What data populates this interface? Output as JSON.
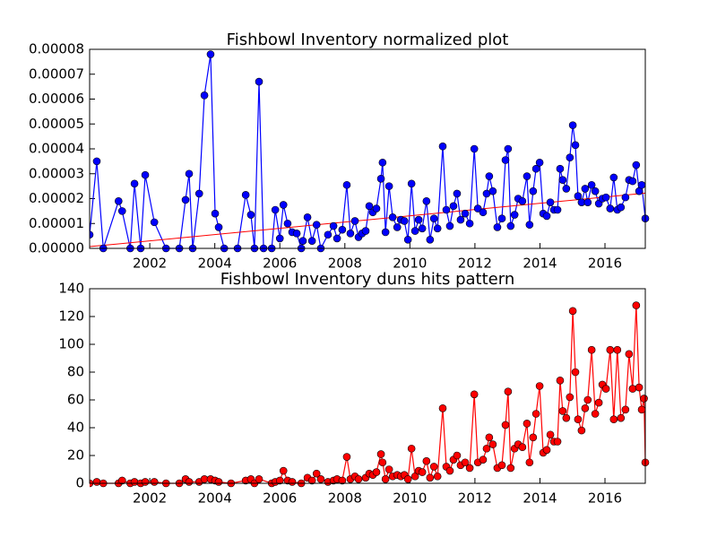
{
  "chart_data": [
    {
      "type": "line",
      "title": "Fishbowl Inventory normalized plot",
      "xlim": [
        2000.15,
        2017.24
      ],
      "xticks": [
        2002,
        2004,
        2006,
        2008,
        2010,
        2012,
        2014,
        2016
      ],
      "ylim": [
        0,
        8e-05
      ],
      "yticks": [
        {
          "value": 0,
          "label": "0.00000"
        },
        {
          "value": 1e-05,
          "label": "0.00001"
        },
        {
          "value": 2e-05,
          "label": "0.00002"
        },
        {
          "value": 3e-05,
          "label": "0.00003"
        },
        {
          "value": 4e-05,
          "label": "0.00004"
        },
        {
          "value": 5e-05,
          "label": "0.00005"
        },
        {
          "value": 6e-05,
          "label": "0.00006"
        },
        {
          "value": 7e-05,
          "label": "0.00007"
        },
        {
          "value": 8e-05,
          "label": "0.00008"
        }
      ],
      "color": "#0000ff",
      "x": [
        2000.15,
        2000.37,
        2000.57,
        2001.04,
        2001.15,
        2001.4,
        2001.53,
        2001.72,
        2001.86,
        2002.14,
        2002.5,
        2002.91,
        2003.1,
        2003.21,
        2003.32,
        2003.52,
        2003.68,
        2003.87,
        2004.01,
        2004.12,
        2004.29,
        2004.7,
        2004.95,
        2005.11,
        2005.22,
        2005.36,
        2005.5,
        2005.75,
        2005.86,
        2006.0,
        2006.11,
        2006.24,
        2006.38,
        2006.52,
        2006.66,
        2006.71,
        2006.85,
        2006.99,
        2007.13,
        2007.26,
        2007.48,
        2007.65,
        2007.76,
        2007.92,
        2008.06,
        2008.17,
        2008.31,
        2008.42,
        2008.53,
        2008.64,
        2008.75,
        2008.86,
        2008.97,
        2009.11,
        2009.16,
        2009.25,
        2009.36,
        2009.47,
        2009.61,
        2009.72,
        2009.83,
        2009.94,
        2010.05,
        2010.16,
        2010.27,
        2010.38,
        2010.51,
        2010.62,
        2010.74,
        2010.85,
        2011.01,
        2011.12,
        2011.23,
        2011.34,
        2011.45,
        2011.56,
        2011.7,
        2011.84,
        2011.98,
        2012.09,
        2012.25,
        2012.36,
        2012.44,
        2012.55,
        2012.69,
        2012.83,
        2012.94,
        2013.02,
        2013.1,
        2013.22,
        2013.33,
        2013.46,
        2013.6,
        2013.68,
        2013.79,
        2013.88,
        2013.99,
        2014.1,
        2014.21,
        2014.32,
        2014.43,
        2014.54,
        2014.62,
        2014.7,
        2014.81,
        2014.92,
        2015.01,
        2015.09,
        2015.17,
        2015.28,
        2015.39,
        2015.47,
        2015.59,
        2015.7,
        2015.81,
        2015.92,
        2016.03,
        2016.16,
        2016.27,
        2016.38,
        2016.49,
        2016.63,
        2016.74,
        2016.85,
        2016.96,
        2017.05,
        2017.13,
        2017.24
      ],
      "values": [
        5.5e-06,
        3.5e-05,
        0,
        1.9e-05,
        1.5e-05,
        0,
        2.6e-05,
        0,
        2.95e-05,
        1.05e-05,
        0,
        0,
        1.95e-05,
        3e-05,
        0,
        2.2e-05,
        6.15e-05,
        7.8e-05,
        1.4e-05,
        8.5e-06,
        0,
        0,
        2.15e-05,
        1.35e-05,
        0,
        6.7e-05,
        0,
        0,
        1.55e-05,
        4e-06,
        1.75e-05,
        1e-05,
        6.5e-06,
        6e-06,
        0,
        3e-06,
        1.25e-05,
        3e-06,
        9.5e-06,
        0,
        5.5e-06,
        9e-06,
        4e-06,
        7.5e-06,
        2.55e-05,
        6e-06,
        1.1e-05,
        4.5e-06,
        6e-06,
        7e-06,
        1.7e-05,
        1.45e-05,
        1.6e-05,
        2.8e-05,
        3.45e-05,
        6.5e-06,
        2.5e-05,
        1.25e-05,
        8.5e-06,
        1.15e-05,
        1.1e-05,
        3.5e-06,
        2.6e-05,
        7e-06,
        1.15e-05,
        8e-06,
        1.9e-05,
        3.5e-06,
        1.2e-05,
        8e-06,
        4.1e-05,
        1.55e-05,
        9e-06,
        1.7e-05,
        2.2e-05,
        1.15e-05,
        1.4e-05,
        1e-05,
        4e-05,
        1.6e-05,
        1.45e-05,
        2.2e-05,
        2.9e-05,
        2.3e-05,
        8.5e-06,
        1.2e-05,
        3.55e-05,
        4e-05,
        9e-06,
        1.35e-05,
        2e-05,
        1.9e-05,
        2.9e-05,
        9.5e-06,
        2.3e-05,
        3.2e-05,
        3.45e-05,
        1.4e-05,
        1.3e-05,
        1.85e-05,
        1.55e-05,
        1.55e-05,
        3.2e-05,
        2.75e-05,
        2.4e-05,
        3.65e-05,
        4.95e-05,
        4.15e-05,
        2.1e-05,
        1.85e-05,
        2.4e-05,
        1.85e-05,
        2.55e-05,
        2.3e-05,
        1.8e-05,
        2e-05,
        2.05e-05,
        1.6e-05,
        2.85e-05,
        1.55e-05,
        1.65e-05,
        2.05e-05,
        2.75e-05,
        2.7e-05,
        3.35e-05,
        2.3e-05,
        2.55e-05,
        1.2e-05
      ],
      "trend": {
        "color": "#ff0000",
        "x": [
          2000.15,
          2017.24
        ],
        "values": [
          7e-07,
          2.22e-05
        ]
      }
    },
    {
      "type": "line",
      "title": "Fishbowl Inventory duns hits pattern",
      "xlim": [
        2000.15,
        2017.24
      ],
      "xticks": [
        2002,
        2004,
        2006,
        2008,
        2010,
        2012,
        2014,
        2016
      ],
      "ylim": [
        0,
        140
      ],
      "yticks": [
        0,
        20,
        40,
        60,
        80,
        100,
        120,
        140
      ],
      "color": "#ff0000",
      "x": [
        2000.15,
        2000.37,
        2000.57,
        2001.04,
        2001.15,
        2001.4,
        2001.53,
        2001.72,
        2001.86,
        2002.14,
        2002.5,
        2002.91,
        2003.1,
        2003.21,
        2003.52,
        2003.68,
        2003.87,
        2004.01,
        2004.12,
        2004.5,
        2004.95,
        2005.11,
        2005.22,
        2005.36,
        2005.75,
        2005.86,
        2006.0,
        2006.11,
        2006.24,
        2006.38,
        2006.66,
        2006.85,
        2006.99,
        2007.13,
        2007.26,
        2007.48,
        2007.65,
        2007.76,
        2007.92,
        2008.06,
        2008.17,
        2008.31,
        2008.42,
        2008.64,
        2008.75,
        2008.86,
        2008.97,
        2009.11,
        2009.16,
        2009.25,
        2009.36,
        2009.47,
        2009.61,
        2009.72,
        2009.83,
        2009.94,
        2010.05,
        2010.16,
        2010.27,
        2010.38,
        2010.51,
        2010.62,
        2010.74,
        2010.85,
        2011.01,
        2011.12,
        2011.23,
        2011.34,
        2011.45,
        2011.56,
        2011.7,
        2011.84,
        2011.98,
        2012.09,
        2012.25,
        2012.36,
        2012.44,
        2012.55,
        2012.69,
        2012.83,
        2012.94,
        2013.02,
        2013.1,
        2013.22,
        2013.33,
        2013.46,
        2013.6,
        2013.68,
        2013.79,
        2013.88,
        2013.99,
        2014.1,
        2014.21,
        2014.32,
        2014.43,
        2014.54,
        2014.62,
        2014.7,
        2014.81,
        2014.92,
        2015.01,
        2015.09,
        2015.17,
        2015.28,
        2015.39,
        2015.47,
        2015.59,
        2015.7,
        2015.81,
        2015.92,
        2016.03,
        2016.16,
        2016.27,
        2016.38,
        2016.49,
        2016.63,
        2016.74,
        2016.85,
        2016.96,
        2017.05,
        2017.13,
        2017.2,
        2017.24
      ],
      "values": [
        0,
        1,
        0,
        0,
        2,
        0,
        1,
        0,
        1,
        1,
        0,
        0,
        3,
        1,
        1,
        3,
        3,
        2,
        1,
        0,
        2,
        3,
        0,
        3,
        0,
        1,
        2,
        9,
        2,
        1,
        0,
        4,
        2,
        7,
        3,
        1,
        2,
        3,
        2,
        19,
        3,
        5,
        3,
        4,
        7,
        6,
        8,
        21,
        15,
        3,
        10,
        5,
        6,
        5,
        6,
        3,
        25,
        5,
        9,
        8,
        16,
        4,
        12,
        5,
        54,
        12,
        9,
        17,
        20,
        13,
        15,
        11,
        64,
        15,
        17,
        25,
        33,
        28,
        11,
        13,
        42,
        66,
        11,
        25,
        28,
        26,
        43,
        15,
        33,
        50,
        70,
        22,
        24,
        35,
        30,
        30,
        74,
        52,
        47,
        62,
        124,
        80,
        46,
        38,
        54,
        60,
        96,
        50,
        58,
        71,
        68,
        96,
        46,
        96,
        47,
        53,
        93,
        68,
        128,
        69,
        53,
        61,
        15
      ]
    }
  ]
}
